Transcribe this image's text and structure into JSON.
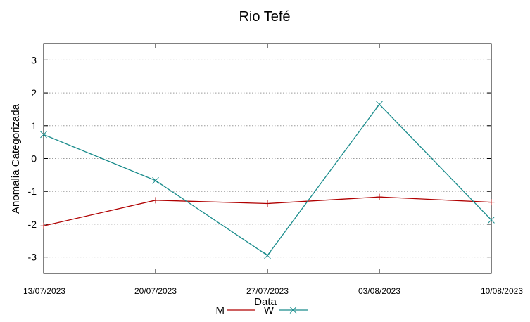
{
  "chart_data": {
    "type": "line",
    "title": "Rio Tefé",
    "xlabel": "Data",
    "ylabel": "Anomalia Categorizada",
    "categories": [
      "13/07/2023",
      "20/07/2023",
      "27/07/2023",
      "03/08/2023",
      "10/08/2023"
    ],
    "yticks": [
      3,
      2,
      1,
      0,
      -1,
      -2,
      -3
    ],
    "ylim": [
      -3.5,
      3.5
    ],
    "grid": true,
    "legend_position": "bottom-center",
    "series": [
      {
        "name": "M",
        "values": [
          -2.05,
          -1.27,
          -1.37,
          -1.17,
          -1.33
        ],
        "color": "#b00000",
        "marker": "plus"
      },
      {
        "name": "W",
        "values": [
          0.73,
          -0.67,
          -2.95,
          1.65,
          -1.87
        ],
        "color": "#1a8c8c",
        "marker": "x"
      }
    ]
  }
}
